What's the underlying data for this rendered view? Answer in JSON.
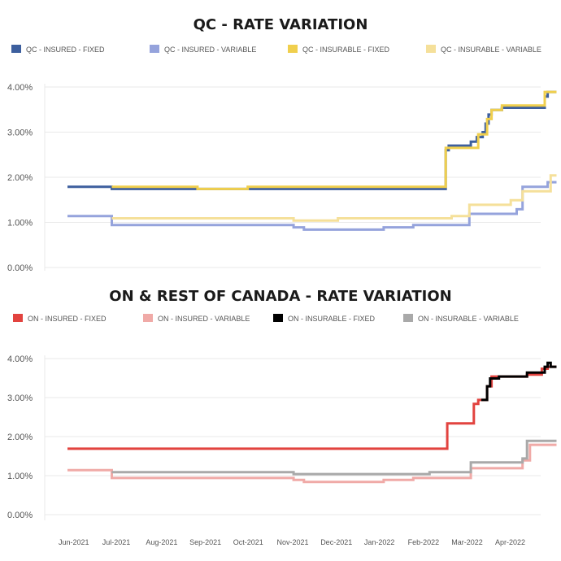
{
  "chart_data": [
    {
      "type": "line",
      "title": "QC - RATE VARIATION",
      "xlabel": "",
      "ylabel": "",
      "ylim": [
        0,
        4
      ],
      "yticks": [
        "0.00%",
        "1.00%",
        "2.00%",
        "3.00%",
        "4.00%"
      ],
      "legend_position": "top",
      "x_range": [
        "2021-06-01",
        "2022-04-30"
      ],
      "series": [
        {
          "name": "QC - INSURED - FIXED",
          "color": "#3d5f9e",
          "points": [
            [
              "2021-06-01",
              1.79
            ],
            [
              "2021-07-01",
              1.79
            ],
            [
              "2021-07-01",
              1.74
            ],
            [
              "2022-02-12",
              1.74
            ],
            [
              "2022-02-12",
              2.6
            ],
            [
              "2022-02-14",
              2.6
            ],
            [
              "2022-02-14",
              2.7
            ],
            [
              "2022-03-01",
              2.7
            ],
            [
              "2022-03-01",
              2.79
            ],
            [
              "2022-03-05",
              2.79
            ],
            [
              "2022-03-05",
              2.89
            ],
            [
              "2022-03-09",
              2.89
            ],
            [
              "2022-03-09",
              3.0
            ],
            [
              "2022-03-11",
              3.0
            ],
            [
              "2022-03-11",
              3.19
            ],
            [
              "2022-03-13",
              3.19
            ],
            [
              "2022-03-13",
              3.39
            ],
            [
              "2022-03-15",
              3.39
            ],
            [
              "2022-03-15",
              3.49
            ],
            [
              "2022-03-22",
              3.49
            ],
            [
              "2022-03-22",
              3.54
            ],
            [
              "2022-04-20",
              3.54
            ],
            [
              "2022-04-20",
              3.79
            ],
            [
              "2022-04-22",
              3.79
            ],
            [
              "2022-04-22",
              3.89
            ],
            [
              "2022-04-28",
              3.89
            ]
          ]
        },
        {
          "name": "QC - INSURED - VARIABLE",
          "color": "#95a3dc",
          "points": [
            [
              "2021-06-01",
              1.14
            ],
            [
              "2021-07-01",
              1.14
            ],
            [
              "2021-07-01",
              0.94
            ],
            [
              "2021-11-01",
              0.94
            ],
            [
              "2021-11-01",
              0.89
            ],
            [
              "2021-11-08",
              0.89
            ],
            [
              "2021-11-08",
              0.84
            ],
            [
              "2022-01-01",
              0.84
            ],
            [
              "2022-01-01",
              0.89
            ],
            [
              "2022-01-21",
              0.89
            ],
            [
              "2022-01-21",
              0.94
            ],
            [
              "2022-02-28",
              0.94
            ],
            [
              "2022-02-28",
              1.19
            ],
            [
              "2022-04-01",
              1.19
            ],
            [
              "2022-04-01",
              1.29
            ],
            [
              "2022-04-05",
              1.29
            ],
            [
              "2022-04-05",
              1.79
            ],
            [
              "2022-04-22",
              1.79
            ],
            [
              "2022-04-22",
              1.89
            ],
            [
              "2022-04-28",
              1.89
            ]
          ]
        },
        {
          "name": "QC - INSURABLE - FIXED",
          "color": "#f0cf4d",
          "points": [
            [
              "2021-07-01",
              1.79
            ],
            [
              "2021-08-28",
              1.79
            ],
            [
              "2021-08-28",
              1.74
            ],
            [
              "2021-10-01",
              1.74
            ],
            [
              "2021-10-01",
              1.79
            ],
            [
              "2022-02-12",
              1.79
            ],
            [
              "2022-02-12",
              2.65
            ],
            [
              "2022-02-15",
              2.65
            ],
            [
              "2022-02-15",
              2.65
            ],
            [
              "2022-03-06",
              2.65
            ],
            [
              "2022-03-06",
              2.95
            ],
            [
              "2022-03-12",
              2.95
            ],
            [
              "2022-03-12",
              3.29
            ],
            [
              "2022-03-15",
              3.29
            ],
            [
              "2022-03-15",
              3.49
            ],
            [
              "2022-03-22",
              3.49
            ],
            [
              "2022-03-22",
              3.59
            ],
            [
              "2022-04-20",
              3.59
            ],
            [
              "2022-04-20",
              3.89
            ],
            [
              "2022-04-28",
              3.89
            ]
          ]
        },
        {
          "name": "QC - INSURABLE - VARIABLE",
          "color": "#f5e09a",
          "points": [
            [
              "2021-07-01",
              1.09
            ],
            [
              "2021-11-01",
              1.09
            ],
            [
              "2021-11-01",
              1.04
            ],
            [
              "2021-12-01",
              1.04
            ],
            [
              "2021-12-01",
              1.09
            ],
            [
              "2022-02-01",
              1.09
            ],
            [
              "2022-02-01",
              1.09
            ],
            [
              "2022-02-16",
              1.09
            ],
            [
              "2022-02-16",
              1.14
            ],
            [
              "2022-02-28",
              1.14
            ],
            [
              "2022-02-28",
              1.39
            ],
            [
              "2022-03-28",
              1.39
            ],
            [
              "2022-03-28",
              1.49
            ],
            [
              "2022-04-05",
              1.49
            ],
            [
              "2022-04-05",
              1.69
            ],
            [
              "2022-04-24",
              1.69
            ],
            [
              "2022-04-24",
              2.04
            ],
            [
              "2022-04-28",
              2.04
            ]
          ]
        }
      ]
    },
    {
      "type": "line",
      "title": "ON & REST OF CANADA - RATE VARIATION",
      "xlabel": "",
      "ylabel": "",
      "ylim": [
        0,
        4
      ],
      "yticks": [
        "0.00%",
        "1.00%",
        "2.00%",
        "3.00%",
        "4.00%"
      ],
      "legend_position": "top",
      "x_range": [
        "2021-06-01",
        "2022-04-30"
      ],
      "xticks": [
        "Jun-2021",
        "Jul-2021",
        "Aug-2021",
        "Sep-2021",
        "Oct-2021",
        "Nov-2021",
        "Dec-2021",
        "Jan-2022",
        "Feb-2022",
        "Mar-2022",
        "Apr-2022"
      ],
      "series": [
        {
          "name": "ON - INSURED - FIXED",
          "color": "#e2433f",
          "points": [
            [
              "2021-06-01",
              1.69
            ],
            [
              "2022-02-13",
              1.69
            ],
            [
              "2022-02-13",
              2.34
            ],
            [
              "2022-03-03",
              2.34
            ],
            [
              "2022-03-03",
              2.84
            ],
            [
              "2022-03-06",
              2.84
            ],
            [
              "2022-03-06",
              2.94
            ],
            [
              "2022-03-12",
              2.94
            ],
            [
              "2022-03-12",
              3.29
            ],
            [
              "2022-03-15",
              3.29
            ],
            [
              "2022-03-15",
              3.54
            ],
            [
              "2022-04-08",
              3.54
            ],
            [
              "2022-04-08",
              3.59
            ],
            [
              "2022-04-18",
              3.59
            ],
            [
              "2022-04-18",
              3.74
            ],
            [
              "2022-04-22",
              3.74
            ],
            [
              "2022-04-22",
              3.79
            ],
            [
              "2022-04-28",
              3.79
            ]
          ]
        },
        {
          "name": "ON - INSURED - VARIABLE",
          "color": "#f0aaa7",
          "points": [
            [
              "2021-06-01",
              1.14
            ],
            [
              "2021-07-01",
              1.14
            ],
            [
              "2021-07-01",
              0.94
            ],
            [
              "2021-11-01",
              0.94
            ],
            [
              "2021-11-01",
              0.89
            ],
            [
              "2021-11-08",
              0.89
            ],
            [
              "2021-11-08",
              0.84
            ],
            [
              "2022-01-01",
              0.84
            ],
            [
              "2022-01-01",
              0.89
            ],
            [
              "2022-01-21",
              0.89
            ],
            [
              "2022-01-21",
              0.94
            ],
            [
              "2022-03-01",
              0.94
            ],
            [
              "2022-03-01",
              1.19
            ],
            [
              "2022-04-05",
              1.19
            ],
            [
              "2022-04-05",
              1.39
            ],
            [
              "2022-04-10",
              1.39
            ],
            [
              "2022-04-10",
              1.79
            ],
            [
              "2022-04-28",
              1.79
            ]
          ]
        },
        {
          "name": "ON - INSURABLE - FIXED",
          "color": "#000000",
          "points": [
            [
              "2022-03-08",
              2.94
            ],
            [
              "2022-03-12",
              2.94
            ],
            [
              "2022-03-12",
              3.29
            ],
            [
              "2022-03-14",
              3.29
            ],
            [
              "2022-03-14",
              3.49
            ],
            [
              "2022-03-20",
              3.49
            ],
            [
              "2022-03-20",
              3.54
            ],
            [
              "2022-04-08",
              3.54
            ],
            [
              "2022-04-08",
              3.64
            ],
            [
              "2022-04-20",
              3.64
            ],
            [
              "2022-04-20",
              3.79
            ],
            [
              "2022-04-22",
              3.79
            ],
            [
              "2022-04-22",
              3.89
            ],
            [
              "2022-04-24",
              3.89
            ],
            [
              "2022-04-24",
              3.79
            ],
            [
              "2022-04-28",
              3.79
            ]
          ]
        },
        {
          "name": "ON - INSURABLE - VARIABLE",
          "color": "#a9a9a9",
          "points": [
            [
              "2021-07-01",
              1.09
            ],
            [
              "2021-11-01",
              1.09
            ],
            [
              "2021-11-01",
              1.04
            ],
            [
              "2022-02-01",
              1.04
            ],
            [
              "2022-02-01",
              1.09
            ],
            [
              "2022-03-01",
              1.09
            ],
            [
              "2022-03-01",
              1.34
            ],
            [
              "2022-04-05",
              1.34
            ],
            [
              "2022-04-05",
              1.44
            ],
            [
              "2022-04-08",
              1.44
            ],
            [
              "2022-04-08",
              1.89
            ],
            [
              "2022-04-28",
              1.89
            ]
          ]
        }
      ]
    }
  ]
}
